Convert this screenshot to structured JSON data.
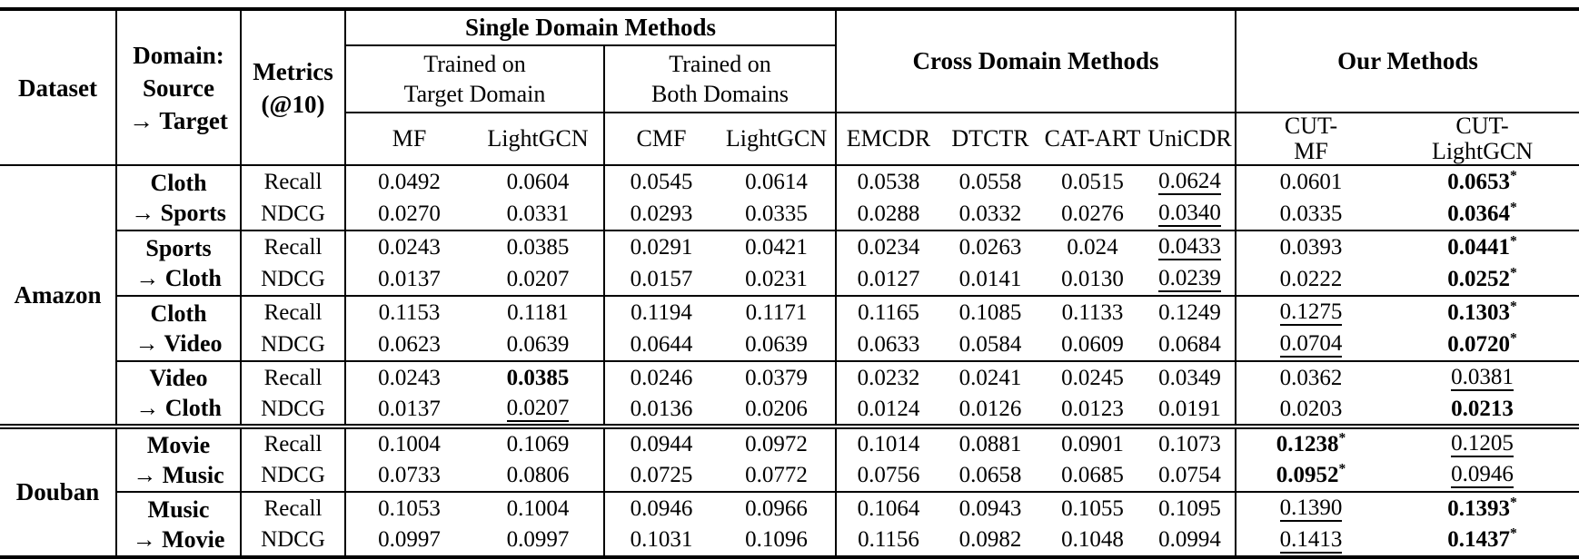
{
  "colors": {
    "text": "#000000",
    "background": "#ffffff",
    "rule": "#000000"
  },
  "table": {
    "header": {
      "dataset": "Dataset",
      "domain": "Domain:\nSource\n→ Target",
      "metrics": "Metrics\n(@10)",
      "single_domain": "Single Domain Methods",
      "trained_target": "Trained on\nTarget Domain",
      "trained_both": "Trained on\nBoth Domains",
      "cross_domain": "Cross Domain Methods",
      "our_methods": "Our Methods",
      "methods": [
        "MF",
        "LightGCN",
        "CMF",
        "LightGCN",
        "EMCDR",
        "DTCTR",
        "CAT-ART",
        "UniCDR",
        "CUT-\nMF",
        "CUT-\nLightGCN"
      ]
    },
    "flag_legend": {
      "b": "bold (best)",
      "u": "underlined (runner-up)",
      "s": "asterisk marker"
    },
    "groups": [
      {
        "dataset": "Amazon",
        "double_rule_after": true,
        "pairs": [
          {
            "source": "Cloth",
            "target": "→ Sports",
            "rows": [
              {
                "metric": "Recall",
                "values": [
                  {
                    "v": "0.0492"
                  },
                  {
                    "v": "0.0604"
                  },
                  {
                    "v": "0.0545"
                  },
                  {
                    "v": "0.0614"
                  },
                  {
                    "v": "0.0538"
                  },
                  {
                    "v": "0.0558"
                  },
                  {
                    "v": "0.0515"
                  },
                  {
                    "v": "0.0624",
                    "f": "u"
                  },
                  {
                    "v": "0.0601"
                  },
                  {
                    "v": "0.0653",
                    "f": "bs"
                  }
                ]
              },
              {
                "metric": "NDCG",
                "values": [
                  {
                    "v": "0.0270"
                  },
                  {
                    "v": "0.0331"
                  },
                  {
                    "v": "0.0293"
                  },
                  {
                    "v": "0.0335"
                  },
                  {
                    "v": "0.0288"
                  },
                  {
                    "v": "0.0332"
                  },
                  {
                    "v": "0.0276"
                  },
                  {
                    "v": "0.0340",
                    "f": "u"
                  },
                  {
                    "v": "0.0335"
                  },
                  {
                    "v": "0.0364",
                    "f": "bs"
                  }
                ]
              }
            ]
          },
          {
            "source": "Sports",
            "target": "→ Cloth",
            "rows": [
              {
                "metric": "Recall",
                "values": [
                  {
                    "v": "0.0243"
                  },
                  {
                    "v": "0.0385"
                  },
                  {
                    "v": "0.0291"
                  },
                  {
                    "v": "0.0421"
                  },
                  {
                    "v": "0.0234"
                  },
                  {
                    "v": "0.0263"
                  },
                  {
                    "v": "0.024"
                  },
                  {
                    "v": "0.0433",
                    "f": "u"
                  },
                  {
                    "v": "0.0393"
                  },
                  {
                    "v": "0.0441",
                    "f": "bs"
                  }
                ]
              },
              {
                "metric": "NDCG",
                "values": [
                  {
                    "v": "0.0137"
                  },
                  {
                    "v": "0.0207"
                  },
                  {
                    "v": "0.0157"
                  },
                  {
                    "v": "0.0231"
                  },
                  {
                    "v": "0.0127"
                  },
                  {
                    "v": "0.0141"
                  },
                  {
                    "v": "0.0130"
                  },
                  {
                    "v": "0.0239",
                    "f": "u"
                  },
                  {
                    "v": "0.0222"
                  },
                  {
                    "v": "0.0252",
                    "f": "bs"
                  }
                ]
              }
            ]
          },
          {
            "source": "Cloth",
            "target": "→ Video",
            "rows": [
              {
                "metric": "Recall",
                "values": [
                  {
                    "v": "0.1153"
                  },
                  {
                    "v": "0.1181"
                  },
                  {
                    "v": "0.1194"
                  },
                  {
                    "v": "0.1171"
                  },
                  {
                    "v": "0.1165"
                  },
                  {
                    "v": "0.1085"
                  },
                  {
                    "v": "0.1133"
                  },
                  {
                    "v": "0.1249"
                  },
                  {
                    "v": "0.1275",
                    "f": "u"
                  },
                  {
                    "v": "0.1303",
                    "f": "bs"
                  }
                ]
              },
              {
                "metric": "NDCG",
                "values": [
                  {
                    "v": "0.0623"
                  },
                  {
                    "v": "0.0639"
                  },
                  {
                    "v": "0.0644"
                  },
                  {
                    "v": "0.0639"
                  },
                  {
                    "v": "0.0633"
                  },
                  {
                    "v": "0.0584"
                  },
                  {
                    "v": "0.0609"
                  },
                  {
                    "v": "0.0684"
                  },
                  {
                    "v": "0.0704",
                    "f": "u"
                  },
                  {
                    "v": "0.0720",
                    "f": "bs"
                  }
                ]
              }
            ]
          },
          {
            "source": "Video",
            "target": "→ Cloth",
            "rows": [
              {
                "metric": "Recall",
                "values": [
                  {
                    "v": "0.0243"
                  },
                  {
                    "v": "0.0385",
                    "f": "b"
                  },
                  {
                    "v": "0.0246"
                  },
                  {
                    "v": "0.0379"
                  },
                  {
                    "v": "0.0232"
                  },
                  {
                    "v": "0.0241"
                  },
                  {
                    "v": "0.0245"
                  },
                  {
                    "v": "0.0349"
                  },
                  {
                    "v": "0.0362"
                  },
                  {
                    "v": "0.0381",
                    "f": "u"
                  }
                ]
              },
              {
                "metric": "NDCG",
                "values": [
                  {
                    "v": "0.0137"
                  },
                  {
                    "v": "0.0207",
                    "f": "u"
                  },
                  {
                    "v": "0.0136"
                  },
                  {
                    "v": "0.0206"
                  },
                  {
                    "v": "0.0124"
                  },
                  {
                    "v": "0.0126"
                  },
                  {
                    "v": "0.0123"
                  },
                  {
                    "v": "0.0191"
                  },
                  {
                    "v": "0.0203"
                  },
                  {
                    "v": "0.0213",
                    "f": "b"
                  }
                ]
              }
            ]
          }
        ]
      },
      {
        "dataset": "Douban",
        "double_rule_after": false,
        "pairs": [
          {
            "source": "Movie",
            "target": "→ Music",
            "rows": [
              {
                "metric": "Recall",
                "values": [
                  {
                    "v": "0.1004"
                  },
                  {
                    "v": "0.1069"
                  },
                  {
                    "v": "0.0944"
                  },
                  {
                    "v": "0.0972"
                  },
                  {
                    "v": "0.1014"
                  },
                  {
                    "v": "0.0881"
                  },
                  {
                    "v": "0.0901"
                  },
                  {
                    "v": "0.1073"
                  },
                  {
                    "v": "0.1238",
                    "f": "bs"
                  },
                  {
                    "v": "0.1205",
                    "f": "u"
                  }
                ]
              },
              {
                "metric": "NDCG",
                "values": [
                  {
                    "v": "0.0733"
                  },
                  {
                    "v": "0.0806"
                  },
                  {
                    "v": "0.0725"
                  },
                  {
                    "v": "0.0772"
                  },
                  {
                    "v": "0.0756"
                  },
                  {
                    "v": "0.0658"
                  },
                  {
                    "v": "0.0685"
                  },
                  {
                    "v": "0.0754"
                  },
                  {
                    "v": "0.0952",
                    "f": "bs"
                  },
                  {
                    "v": "0.0946",
                    "f": "u"
                  }
                ]
              }
            ]
          },
          {
            "source": "Music",
            "target": "→ Movie",
            "rows": [
              {
                "metric": "Recall",
                "values": [
                  {
                    "v": "0.1053"
                  },
                  {
                    "v": "0.1004"
                  },
                  {
                    "v": "0.0946"
                  },
                  {
                    "v": "0.0966"
                  },
                  {
                    "v": "0.1064"
                  },
                  {
                    "v": "0.0943"
                  },
                  {
                    "v": "0.1055"
                  },
                  {
                    "v": "0.1095"
                  },
                  {
                    "v": "0.1390",
                    "f": "u"
                  },
                  {
                    "v": "0.1393",
                    "f": "bs"
                  }
                ]
              },
              {
                "metric": "NDCG",
                "values": [
                  {
                    "v": "0.0997"
                  },
                  {
                    "v": "0.0997"
                  },
                  {
                    "v": "0.1031"
                  },
                  {
                    "v": "0.1096"
                  },
                  {
                    "v": "0.1156"
                  },
                  {
                    "v": "0.0982"
                  },
                  {
                    "v": "0.1048"
                  },
                  {
                    "v": "0.0994"
                  },
                  {
                    "v": "0.1413",
                    "f": "u"
                  },
                  {
                    "v": "0.1437",
                    "f": "bs"
                  }
                ]
              }
            ]
          }
        ]
      }
    ]
  }
}
